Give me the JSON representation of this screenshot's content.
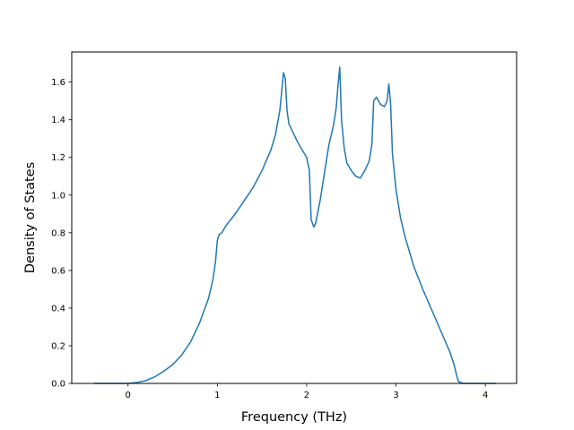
{
  "chart_data": {
    "type": "line",
    "title": "",
    "xlabel": "Frequency (THz)",
    "ylabel": "Density of States",
    "xlim": [
      -0.63,
      4.35
    ],
    "ylim": [
      0.0,
      1.76
    ],
    "xticks": [
      0,
      1,
      2,
      3,
      4
    ],
    "xtick_labels": [
      "0",
      "1",
      "2",
      "3",
      "4"
    ],
    "yticks": [
      0.0,
      0.2,
      0.4,
      0.6,
      0.8,
      1.0,
      1.2,
      1.4,
      1.6
    ],
    "ytick_labels": [
      "0.0",
      "0.2",
      "0.4",
      "0.6",
      "0.8",
      "1.0",
      "1.2",
      "1.4",
      "1.6"
    ],
    "grid": false,
    "line_color": "#1f77b4",
    "series": [
      {
        "points": [
          [
            -0.38,
            0.0
          ],
          [
            0.0,
            0.0
          ],
          [
            0.1,
            0.005
          ],
          [
            0.2,
            0.015
          ],
          [
            0.3,
            0.035
          ],
          [
            0.4,
            0.065
          ],
          [
            0.5,
            0.1
          ],
          [
            0.6,
            0.15
          ],
          [
            0.7,
            0.22
          ],
          [
            0.8,
            0.32
          ],
          [
            0.9,
            0.45
          ],
          [
            0.95,
            0.55
          ],
          [
            0.98,
            0.65
          ],
          [
            1.0,
            0.76
          ],
          [
            1.02,
            0.79
          ],
          [
            1.05,
            0.8
          ],
          [
            1.1,
            0.84
          ],
          [
            1.2,
            0.9
          ],
          [
            1.3,
            0.97
          ],
          [
            1.4,
            1.04
          ],
          [
            1.5,
            1.13
          ],
          [
            1.6,
            1.24
          ],
          [
            1.65,
            1.32
          ],
          [
            1.7,
            1.45
          ],
          [
            1.72,
            1.55
          ],
          [
            1.74,
            1.65
          ],
          [
            1.76,
            1.62
          ],
          [
            1.78,
            1.45
          ],
          [
            1.8,
            1.38
          ],
          [
            1.85,
            1.33
          ],
          [
            1.9,
            1.28
          ],
          [
            1.95,
            1.24
          ],
          [
            2.0,
            1.2
          ],
          [
            2.03,
            1.13
          ],
          [
            2.05,
            0.87
          ],
          [
            2.08,
            0.83
          ],
          [
            2.1,
            0.85
          ],
          [
            2.15,
            0.97
          ],
          [
            2.2,
            1.12
          ],
          [
            2.25,
            1.27
          ],
          [
            2.3,
            1.37
          ],
          [
            2.33,
            1.46
          ],
          [
            2.35,
            1.58
          ],
          [
            2.37,
            1.68
          ],
          [
            2.39,
            1.4
          ],
          [
            2.42,
            1.25
          ],
          [
            2.45,
            1.17
          ],
          [
            2.5,
            1.13
          ],
          [
            2.55,
            1.1
          ],
          [
            2.6,
            1.09
          ],
          [
            2.65,
            1.13
          ],
          [
            2.7,
            1.18
          ],
          [
            2.73,
            1.27
          ],
          [
            2.75,
            1.5
          ],
          [
            2.78,
            1.52
          ],
          [
            2.83,
            1.48
          ],
          [
            2.87,
            1.47
          ],
          [
            2.9,
            1.5
          ],
          [
            2.92,
            1.59
          ],
          [
            2.94,
            1.48
          ],
          [
            2.96,
            1.22
          ],
          [
            3.0,
            1.03
          ],
          [
            3.05,
            0.88
          ],
          [
            3.1,
            0.78
          ],
          [
            3.2,
            0.62
          ],
          [
            3.3,
            0.5
          ],
          [
            3.4,
            0.39
          ],
          [
            3.5,
            0.28
          ],
          [
            3.6,
            0.17
          ],
          [
            3.65,
            0.1
          ],
          [
            3.68,
            0.04
          ],
          [
            3.7,
            0.01
          ],
          [
            3.75,
            0.0
          ],
          [
            4.12,
            0.0
          ]
        ]
      }
    ]
  }
}
